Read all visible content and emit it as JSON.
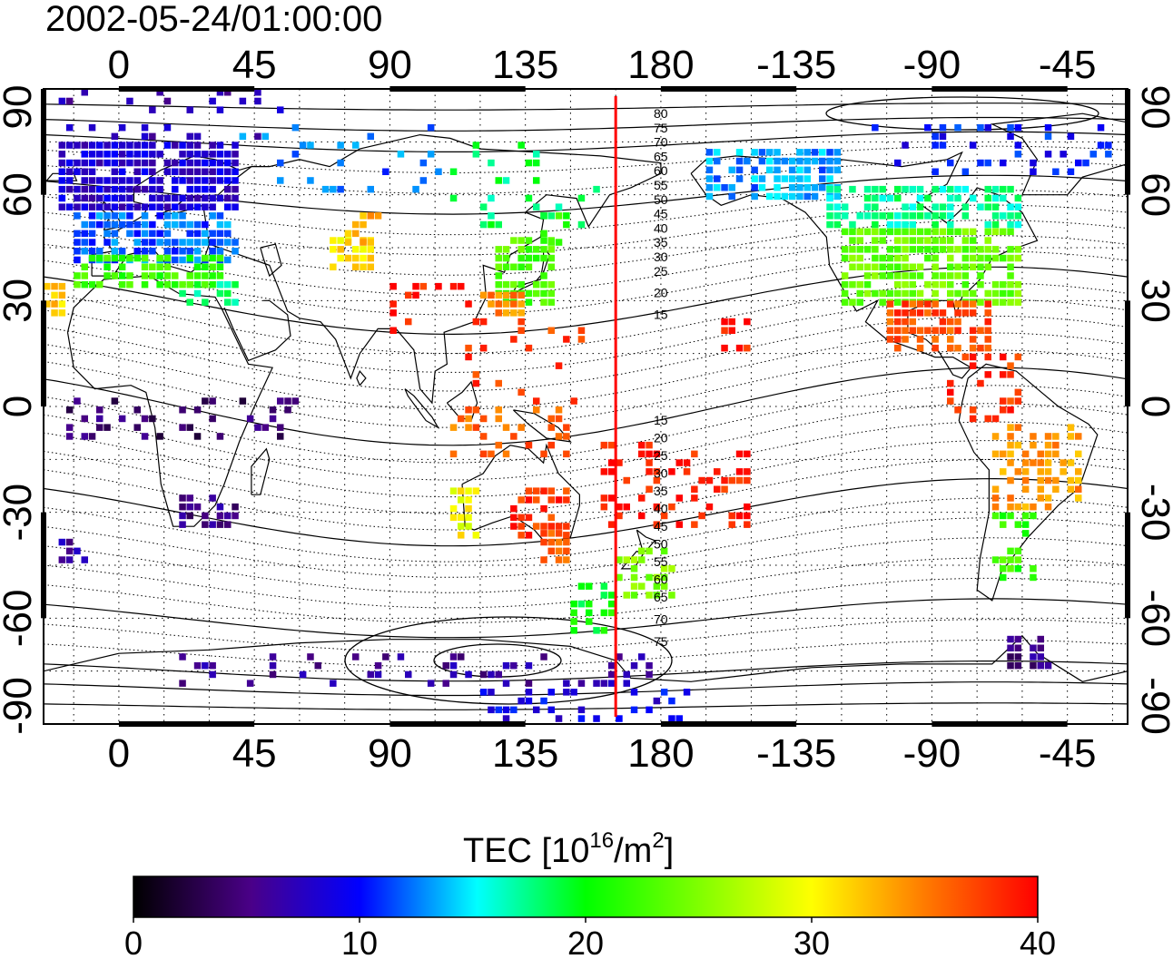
{
  "title": "2002-05-24/01:00:00",
  "axes": {
    "lon_labels": [
      "0",
      "45",
      "90",
      "135",
      "180",
      "-135",
      "-90",
      "-45"
    ],
    "lat_labels": [
      "90",
      "60",
      "30",
      "0",
      "-30",
      "-60",
      "-90"
    ]
  },
  "colorbar": {
    "label_main": "TEC  [10",
    "label_exp1": "16",
    "label_mid": "/m",
    "label_exp2": "2",
    "label_end": "]",
    "ticks": [
      "0",
      "10",
      "20",
      "30",
      "40"
    ],
    "range": [
      0,
      40
    ],
    "colors": [
      "#000000",
      "#4a0088",
      "#0000ff",
      "#00ffff",
      "#00ff00",
      "#ffff00",
      "#ff8000",
      "#ff0000"
    ]
  },
  "map": {
    "lon_range": [
      -25,
      335
    ],
    "lat_range": [
      -90,
      90
    ],
    "terminator_lon": 165,
    "terminator_color": "#ff0000",
    "contour_labels_north": [
      "80",
      "75",
      "70",
      "65",
      "60",
      "55",
      "50",
      "45",
      "40",
      "35",
      "30",
      "25",
      "20",
      "15"
    ],
    "contour_labels_south": [
      "15",
      "20",
      "25",
      "30",
      "35",
      "40",
      "45",
      "50",
      "55",
      "60",
      "65",
      "70",
      "75"
    ]
  },
  "tec_regions": [
    {
      "lon0": -20,
      "lon1": 40,
      "lat0": 55,
      "lat1": 75,
      "tec": 8,
      "density": 0.85
    },
    {
      "lon0": -15,
      "lon1": 40,
      "lat0": 40,
      "lat1": 55,
      "tec": 12,
      "density": 0.8
    },
    {
      "lon0": -15,
      "lon1": 35,
      "lat0": 33,
      "lat1": 42,
      "tec": 22,
      "density": 0.7
    },
    {
      "lon0": -25,
      "lon1": -18,
      "lat0": 25,
      "lat1": 33,
      "tec": 32,
      "density": 0.8
    },
    {
      "lon0": 20,
      "lon1": 40,
      "lat0": 28,
      "lat1": 35,
      "tec": 18,
      "density": 0.5
    },
    {
      "lon0": -20,
      "lon1": 60,
      "lat0": 75,
      "lat1": 88,
      "tec": 7,
      "density": 0.15
    },
    {
      "lon0": 70,
      "lon1": 85,
      "lat0": 38,
      "lat1": 48,
      "tec": 31,
      "density": 0.7
    },
    {
      "lon0": 75,
      "lon1": 90,
      "lat0": 45,
      "lat1": 53,
      "tec": 33,
      "density": 0.4
    },
    {
      "lon0": 125,
      "lon1": 145,
      "lat0": 28,
      "lat1": 48,
      "tec": 23,
      "density": 0.75
    },
    {
      "lon0": 140,
      "lon1": 150,
      "lat0": 45,
      "lat1": 55,
      "tec": 22,
      "density": 0.5
    },
    {
      "lon0": 120,
      "lon1": 135,
      "lat0": 25,
      "lat1": 31,
      "tec": 35,
      "density": 0.8
    },
    {
      "lon0": 90,
      "lon1": 120,
      "lat0": 20,
      "lat1": 35,
      "tec": 39,
      "density": 0.15
    },
    {
      "lon0": 115,
      "lon1": 155,
      "lat0": 0,
      "lat1": 25,
      "tec": 38,
      "density": 0.15
    },
    {
      "lon0": 110,
      "lon1": 150,
      "lat0": -15,
      "lat1": 0,
      "tec": 36,
      "density": 0.25
    },
    {
      "lon0": 110,
      "lon1": 120,
      "lat0": -38,
      "lat1": -25,
      "tec": 30,
      "density": 0.6
    },
    {
      "lon0": 130,
      "lon1": 150,
      "lat0": -38,
      "lat1": -25,
      "tec": 38,
      "density": 0.6
    },
    {
      "lon0": 140,
      "lon1": 150,
      "lat0": -45,
      "lat1": -35,
      "tec": 37,
      "density": 0.6
    },
    {
      "lon0": 165,
      "lon1": 185,
      "lat0": -55,
      "lat1": -40,
      "tec": 25,
      "density": 0.6
    },
    {
      "lon0": 150,
      "lon1": 165,
      "lat0": -65,
      "lat1": -50,
      "tec": 20,
      "density": 0.4
    },
    {
      "lon0": 160,
      "lon1": 210,
      "lat0": -35,
      "lat1": -10,
      "tec": 39,
      "density": 0.3
    },
    {
      "lon0": 200,
      "lon1": 210,
      "lat0": 15,
      "lat1": 25,
      "tec": 39,
      "density": 0.5
    },
    {
      "lon0": 110,
      "lon1": 160,
      "lat0": 50,
      "lat1": 75,
      "tec": 18,
      "density": 0.12
    },
    {
      "lon0": 40,
      "lon1": 110,
      "lat0": 60,
      "lat1": 80,
      "tec": 12,
      "density": 0.12
    },
    {
      "lon0": 195,
      "lon1": 240,
      "lat0": 58,
      "lat1": 72,
      "tec": 13,
      "density": 0.7
    },
    {
      "lon0": 235,
      "lon1": 300,
      "lat0": 50,
      "lat1": 62,
      "tec": 17,
      "density": 0.6
    },
    {
      "lon0": 240,
      "lon1": 300,
      "lat0": 28,
      "lat1": 50,
      "tec": 24,
      "density": 0.8
    },
    {
      "lon0": 255,
      "lon1": 290,
      "lat0": 15,
      "lat1": 28,
      "tec": 37,
      "density": 0.7
    },
    {
      "lon0": 275,
      "lon1": 300,
      "lat0": -5,
      "lat1": 15,
      "tec": 38,
      "density": 0.3
    },
    {
      "lon0": 290,
      "lon1": 320,
      "lat0": -30,
      "lat1": -5,
      "tec": 34,
      "density": 0.4
    },
    {
      "lon0": 290,
      "lon1": 305,
      "lat0": -50,
      "lat1": -30,
      "tec": 22,
      "density": 0.4
    },
    {
      "lon0": 250,
      "lon1": 330,
      "lat0": 65,
      "lat1": 80,
      "tec": 10,
      "density": 0.2
    },
    {
      "lon0": -20,
      "lon1": 60,
      "lat0": -10,
      "lat1": 2,
      "tec": 4,
      "density": 0.2
    },
    {
      "lon0": 20,
      "lon1": 40,
      "lat0": -35,
      "lat1": -25,
      "tec": 5,
      "density": 0.5
    },
    {
      "lon0": -20,
      "lon1": -10,
      "lat0": -45,
      "lat1": -38,
      "tec": 6,
      "density": 0.5
    },
    {
      "lon0": 20,
      "lon1": 180,
      "lat0": -80,
      "lat1": -70,
      "tec": 6,
      "density": 0.2
    },
    {
      "lon0": 120,
      "lon1": 190,
      "lat0": -90,
      "lat1": -80,
      "tec": 9,
      "density": 0.3
    },
    {
      "lon0": 295,
      "lon1": 310,
      "lat0": -75,
      "lat1": -65,
      "tec": 5,
      "density": 0.6
    }
  ]
}
